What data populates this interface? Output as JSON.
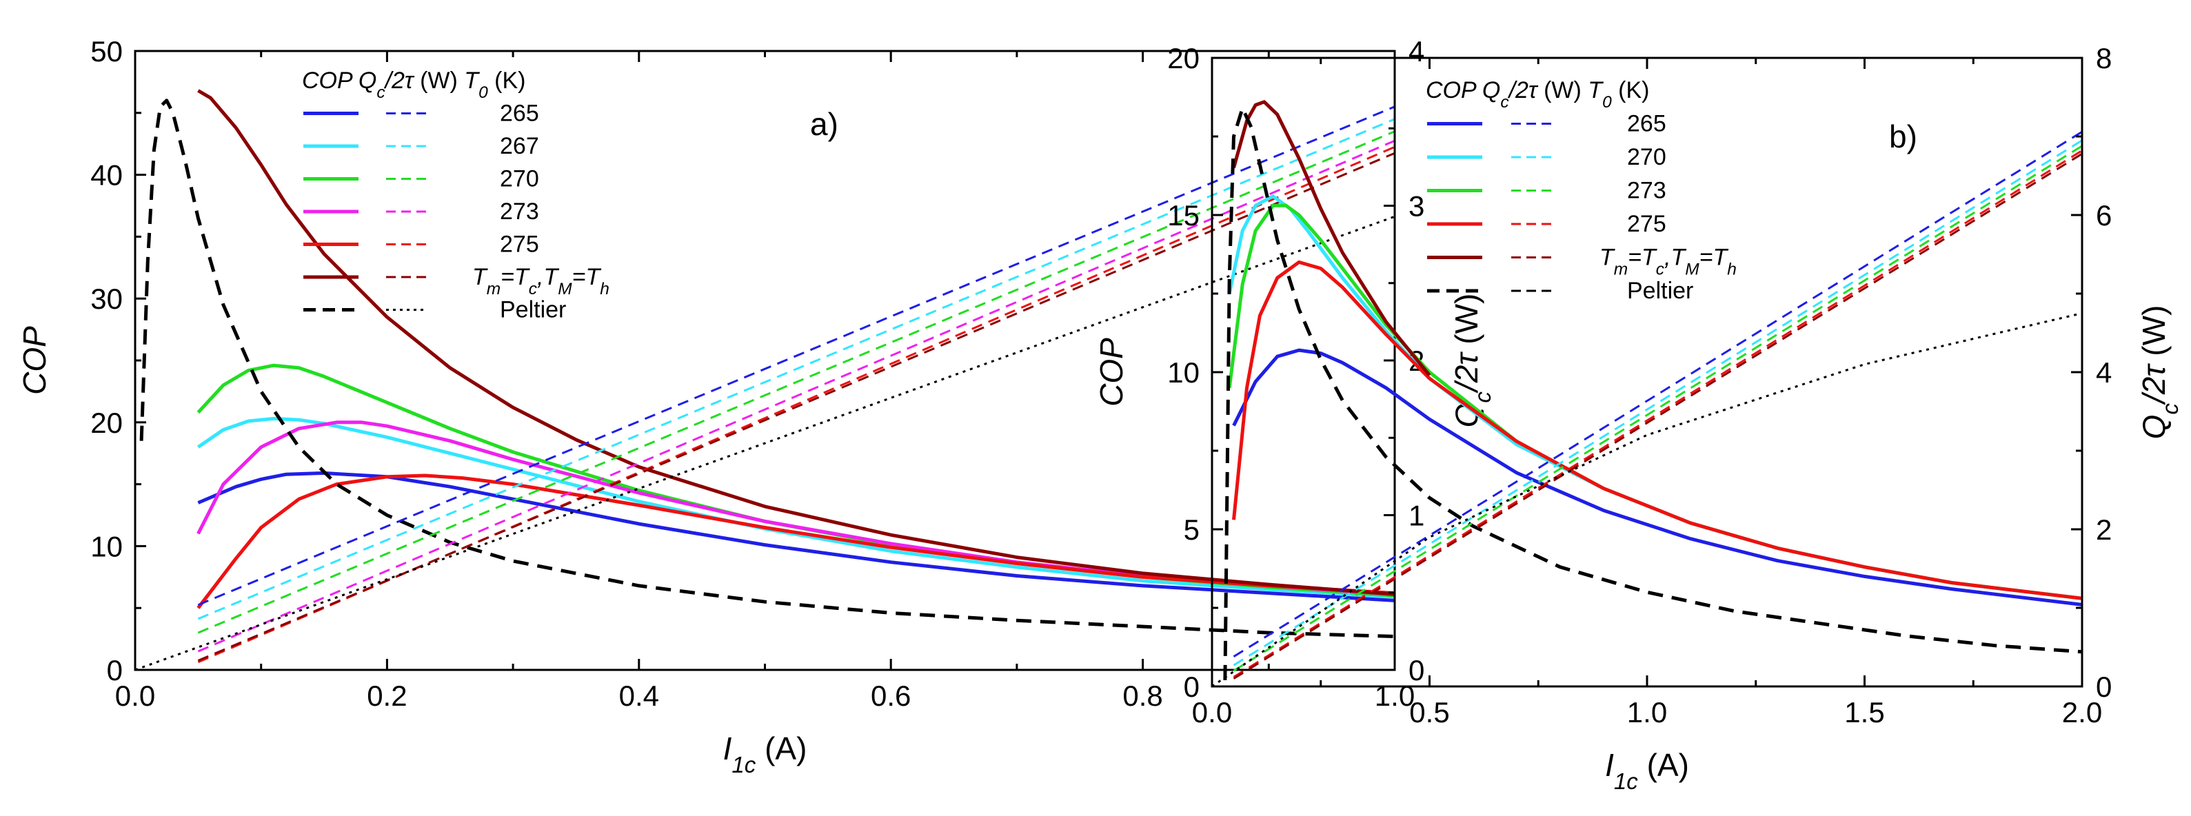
{
  "colors": {
    "265": "#1f1fe6",
    "267": "#33e6ff",
    "270": "#22dd22",
    "273": "#ee22ee",
    "275": "#ee1111",
    "ideal": "#8b0000",
    "peltier": "#000000"
  },
  "chart_data": [
    {
      "panel": "a)",
      "type": "line",
      "xlabel": "I1c (A)",
      "ylabel_left": "COP",
      "ylabel_right": "Qc/2τ (W)",
      "xlim": [
        0.0,
        1.0
      ],
      "ylim_left": [
        0,
        50
      ],
      "ylim_right": [
        0,
        4
      ],
      "x_ticks": [
        "0.0",
        "0.2",
        "0.4",
        "0.6",
        "0.8",
        "1.0"
      ],
      "y_left_ticks": [
        "0",
        "10",
        "20",
        "30",
        "40",
        "50"
      ],
      "y_right_ticks": [
        "0",
        "1",
        "2",
        "3",
        "4"
      ],
      "legend": {
        "header": "COP Qc/2τ (W) T0 (K)",
        "entries": [
          {
            "key": "265",
            "label": "265"
          },
          {
            "key": "267",
            "label": "267"
          },
          {
            "key": "270",
            "label": "270"
          },
          {
            "key": "273",
            "label": "273"
          },
          {
            "key": "275",
            "label": "275"
          },
          {
            "key": "ideal",
            "label": "Tm=Tc,TM=Th"
          },
          {
            "key": "peltier",
            "label": "Peltier"
          }
        ]
      },
      "series": [
        {
          "name": "COP 265",
          "key": "265",
          "axis": "left",
          "style": "solid",
          "x": [
            0.05,
            0.08,
            0.1,
            0.12,
            0.15,
            0.2,
            0.25,
            0.3,
            0.4,
            0.5,
            0.6,
            0.7,
            0.8,
            0.9,
            1.0
          ],
          "y": [
            13.5,
            14.8,
            15.4,
            15.8,
            15.9,
            15.6,
            14.8,
            13.8,
            11.8,
            10.1,
            8.7,
            7.6,
            6.8,
            6.2,
            5.6
          ]
        },
        {
          "name": "COP 267",
          "key": "267",
          "axis": "left",
          "style": "solid",
          "x": [
            0.05,
            0.07,
            0.09,
            0.11,
            0.13,
            0.15,
            0.2,
            0.25,
            0.3,
            0.4,
            0.5,
            0.6,
            0.7,
            0.8,
            0.9,
            1.0
          ],
          "y": [
            18.0,
            19.4,
            20.1,
            20.3,
            20.2,
            19.9,
            18.8,
            17.5,
            16.2,
            13.6,
            11.4,
            9.6,
            8.3,
            7.2,
            6.5,
            5.9
          ]
        },
        {
          "name": "COP 270",
          "key": "270",
          "axis": "left",
          "style": "solid",
          "x": [
            0.05,
            0.07,
            0.09,
            0.11,
            0.13,
            0.15,
            0.2,
            0.25,
            0.3,
            0.4,
            0.5,
            0.6,
            0.7,
            0.8,
            0.9,
            1.0
          ],
          "y": [
            20.8,
            23.0,
            24.2,
            24.6,
            24.4,
            23.7,
            21.6,
            19.5,
            17.6,
            14.5,
            12.0,
            10.1,
            8.6,
            7.5,
            6.7,
            6.0
          ]
        },
        {
          "name": "COP 273",
          "key": "273",
          "axis": "left",
          "style": "solid",
          "x": [
            0.05,
            0.07,
            0.1,
            0.13,
            0.16,
            0.18,
            0.2,
            0.25,
            0.3,
            0.4,
            0.5,
            0.6,
            0.7,
            0.8,
            0.9,
            1.0
          ],
          "y": [
            11.0,
            15.0,
            18.0,
            19.5,
            20.0,
            20.0,
            19.7,
            18.5,
            17.0,
            14.3,
            12.0,
            10.2,
            8.7,
            7.6,
            6.8,
            6.1
          ]
        },
        {
          "name": "COP 275",
          "key": "275",
          "axis": "left",
          "style": "solid",
          "x": [
            0.05,
            0.08,
            0.1,
            0.13,
            0.16,
            0.2,
            0.23,
            0.26,
            0.3,
            0.4,
            0.5,
            0.6,
            0.7,
            0.8,
            0.9,
            1.0
          ],
          "y": [
            5.0,
            9.0,
            11.5,
            13.8,
            15.0,
            15.6,
            15.7,
            15.5,
            15.0,
            13.3,
            11.5,
            9.9,
            8.6,
            7.5,
            6.8,
            6.2
          ]
        },
        {
          "name": "COP Tm=Tc,TM=Th",
          "key": "ideal",
          "axis": "left",
          "style": "solid",
          "x": [
            0.05,
            0.06,
            0.08,
            0.1,
            0.12,
            0.15,
            0.2,
            0.25,
            0.3,
            0.35,
            0.4,
            0.5,
            0.6,
            0.7,
            0.8,
            0.9,
            1.0
          ],
          "y": [
            46.8,
            46.2,
            43.8,
            40.8,
            37.6,
            33.6,
            28.5,
            24.4,
            21.2,
            18.6,
            16.4,
            13.2,
            10.9,
            9.1,
            7.8,
            6.9,
            6.1
          ]
        },
        {
          "name": "COP Peltier",
          "key": "peltier",
          "axis": "left",
          "style": "dash",
          "x": [
            0.005,
            0.01,
            0.015,
            0.02,
            0.025,
            0.03,
            0.04,
            0.05,
            0.07,
            0.1,
            0.13,
            0.16,
            0.2,
            0.25,
            0.3,
            0.4,
            0.5,
            0.6,
            0.7,
            0.8,
            0.9,
            1.0
          ],
          "y": [
            18.5,
            33.0,
            42.0,
            45.5,
            46.0,
            45.0,
            41.0,
            36.5,
            29.5,
            22.5,
            18.0,
            15.0,
            12.5,
            10.3,
            8.8,
            6.8,
            5.5,
            4.6,
            4.0,
            3.5,
            3.0,
            2.7
          ]
        },
        {
          "name": "Qc/2τ 265",
          "key": "265",
          "axis": "right",
          "style": "dash",
          "x": [
            0.05,
            1.0
          ],
          "y": [
            0.42,
            3.64
          ]
        },
        {
          "name": "Qc/2τ 267",
          "key": "267",
          "axis": "right",
          "style": "dash",
          "x": [
            0.05,
            1.0
          ],
          "y": [
            0.33,
            3.56
          ]
        },
        {
          "name": "Qc/2τ 270",
          "key": "270",
          "axis": "right",
          "style": "dash",
          "x": [
            0.05,
            1.0
          ],
          "y": [
            0.24,
            3.48
          ]
        },
        {
          "name": "Qc/2τ 273",
          "key": "273",
          "axis": "right",
          "style": "dash",
          "x": [
            0.05,
            1.0
          ],
          "y": [
            0.12,
            3.42
          ]
        },
        {
          "name": "Qc/2τ 275",
          "key": "275",
          "axis": "right",
          "style": "dash",
          "x": [
            0.05,
            1.0
          ],
          "y": [
            0.05,
            3.38
          ]
        },
        {
          "name": "Qc/2τ Tm=Tc,TM=Th",
          "key": "ideal",
          "axis": "right",
          "style": "dash",
          "x": [
            0.05,
            1.0
          ],
          "y": [
            0.06,
            3.34
          ]
        },
        {
          "name": "Qc/2τ Peltier",
          "key": "peltier",
          "axis": "right",
          "style": "dot",
          "x": [
            0.0,
            1.0
          ],
          "y": [
            0.0,
            2.93
          ]
        }
      ]
    },
    {
      "panel": "b)",
      "type": "line",
      "xlabel": "I1c (A)",
      "ylabel_left": "COP",
      "ylabel_right": "Qc/2τ (W)",
      "xlim": [
        0.0,
        2.0
      ],
      "ylim_left": [
        0,
        20
      ],
      "ylim_right": [
        0,
        8
      ],
      "x_ticks": [
        "0.0",
        "0.5",
        "1.0",
        "1.5",
        "2.0"
      ],
      "y_left_ticks": [
        "0",
        "5",
        "10",
        "15",
        "20"
      ],
      "y_right_ticks": [
        "0",
        "2",
        "4",
        "6",
        "8"
      ],
      "legend": {
        "header": "COP Qc/2τ (W) T0 (K)",
        "entries": [
          {
            "key": "265",
            "label": "265"
          },
          {
            "key": "267",
            "label": "270"
          },
          {
            "key": "270",
            "label": "273"
          },
          {
            "key": "275",
            "label": "275"
          },
          {
            "key": "ideal",
            "label": "Tm=Tc,TM=Th"
          },
          {
            "key": "peltier",
            "label": "Peltier"
          }
        ]
      },
      "series": [
        {
          "name": "COP 265",
          "key": "265",
          "axis": "left",
          "style": "solid",
          "x": [
            0.05,
            0.1,
            0.15,
            0.2,
            0.25,
            0.3,
            0.4,
            0.5,
            0.7,
            0.9,
            1.1,
            1.3,
            1.5,
            1.7,
            2.0
          ],
          "y": [
            8.3,
            9.7,
            10.5,
            10.7,
            10.6,
            10.3,
            9.5,
            8.5,
            6.8,
            5.6,
            4.7,
            4.0,
            3.5,
            3.1,
            2.6
          ]
        },
        {
          "name": "COP 270",
          "key": "267",
          "axis": "left",
          "style": "solid",
          "x": [
            0.04,
            0.07,
            0.1,
            0.14,
            0.18,
            0.22,
            0.3,
            0.4,
            0.5,
            0.7,
            0.9,
            1.1,
            1.3,
            1.5,
            1.7,
            2.0
          ],
          "y": [
            12.5,
            14.5,
            15.3,
            15.6,
            15.2,
            14.5,
            13.0,
            11.3,
            9.8,
            7.7,
            6.3,
            5.2,
            4.4,
            3.8,
            3.3,
            2.8
          ]
        },
        {
          "name": "COP 273",
          "key": "270",
          "axis": "left",
          "style": "solid",
          "x": [
            0.04,
            0.07,
            0.1,
            0.14,
            0.17,
            0.2,
            0.25,
            0.3,
            0.4,
            0.5,
            0.7,
            0.9,
            1.1,
            1.3,
            1.5,
            1.7,
            2.0
          ],
          "y": [
            9.5,
            12.8,
            14.5,
            15.3,
            15.3,
            15.0,
            14.2,
            13.3,
            11.5,
            10.0,
            7.8,
            6.3,
            5.2,
            4.4,
            3.8,
            3.3,
            2.8
          ]
        },
        {
          "name": "COP 275",
          "key": "275",
          "axis": "left",
          "style": "solid",
          "x": [
            0.05,
            0.08,
            0.11,
            0.15,
            0.2,
            0.25,
            0.3,
            0.4,
            0.5,
            0.7,
            0.9,
            1.1,
            1.3,
            1.5,
            1.7,
            2.0
          ],
          "y": [
            5.3,
            9.5,
            11.8,
            13.0,
            13.5,
            13.3,
            12.7,
            11.2,
            9.8,
            7.8,
            6.3,
            5.2,
            4.4,
            3.8,
            3.3,
            2.8
          ]
        },
        {
          "name": "COP Tm=Tc,TM=Th",
          "key": "ideal",
          "axis": "left",
          "style": "solid",
          "x": [
            0.05,
            0.08,
            0.1,
            0.12,
            0.15,
            0.2,
            0.25,
            0.3,
            0.4,
            0.5
          ],
          "y": [
            16.5,
            18.0,
            18.5,
            18.6,
            18.2,
            16.8,
            15.2,
            13.8,
            11.6,
            9.9
          ]
        },
        {
          "name": "COP Peltier",
          "key": "peltier",
          "axis": "left",
          "style": "dash",
          "x": [
            0.03,
            0.04,
            0.05,
            0.07,
            0.09,
            0.12,
            0.15,
            0.2,
            0.25,
            0.3,
            0.4,
            0.5,
            0.6,
            0.8,
            1.0,
            1.2,
            1.4,
            1.6,
            1.8,
            2.0
          ],
          "y": [
            0.2,
            13.0,
            17.5,
            18.4,
            17.8,
            16.0,
            14.2,
            12.0,
            10.4,
            9.1,
            7.3,
            6.0,
            5.1,
            3.8,
            3.0,
            2.4,
            2.0,
            1.6,
            1.3,
            1.1
          ]
        },
        {
          "name": "Qc/2τ 265",
          "key": "265",
          "axis": "right",
          "style": "dash",
          "x": [
            0.05,
            2.0
          ],
          "y": [
            0.38,
            7.06
          ]
        },
        {
          "name": "Qc/2τ 270",
          "key": "267",
          "axis": "right",
          "style": "dash",
          "x": [
            0.05,
            2.0
          ],
          "y": [
            0.27,
            6.95
          ]
        },
        {
          "name": "Qc/2τ 273",
          "key": "270",
          "axis": "right",
          "style": "dash",
          "x": [
            0.05,
            2.0
          ],
          "y": [
            0.2,
            6.88
          ]
        },
        {
          "name": "Qc/2τ 275",
          "key": "275",
          "axis": "right",
          "style": "dash",
          "x": [
            0.05,
            2.0
          ],
          "y": [
            0.12,
            6.82
          ]
        },
        {
          "name": "Qc/2τ Tm=Tc,TM=Th",
          "key": "ideal",
          "axis": "right",
          "style": "dash",
          "x": [
            0.05,
            2.0
          ],
          "y": [
            0.1,
            6.78
          ]
        },
        {
          "name": "Qc/2τ Peltier",
          "key": "peltier",
          "axis": "right",
          "style": "dot",
          "x": [
            0.0,
            0.5,
            1.0,
            1.5,
            2.0
          ],
          "y": [
            0.0,
            1.9,
            3.2,
            4.1,
            4.75
          ]
        }
      ]
    }
  ]
}
